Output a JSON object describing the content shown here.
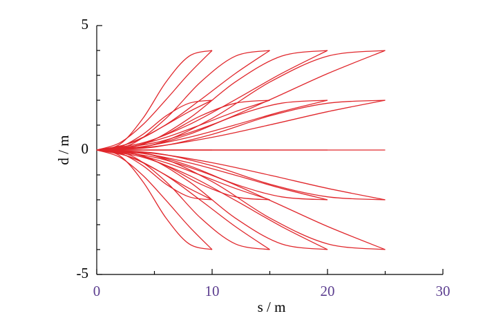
{
  "chart_data": {
    "type": "line",
    "x_label": "s / m",
    "y_label": "d / m",
    "color": "#e0262b",
    "xlim": [
      0,
      30
    ],
    "xticks": [
      0,
      10,
      20,
      30
    ],
    "ylim": [
      -5,
      5
    ],
    "yticks": [
      -5,
      0,
      5
    ],
    "series": [
      {
        "x": [
          0,
          2,
          4,
          6,
          8,
          10
        ],
        "values": [
          0,
          0.23,
          1.27,
          2.73,
          3.77,
          4
        ]
      },
      {
        "x": [
          0,
          2,
          4,
          6,
          8,
          10
        ],
        "values": [
          0,
          0.29,
          1.02,
          2.02,
          3.07,
          4
        ]
      },
      {
        "x": [
          0,
          2,
          4,
          6,
          8,
          10
        ],
        "values": [
          0,
          0.12,
          0.63,
          1.37,
          1.88,
          2
        ]
      },
      {
        "x": [
          0,
          2,
          4,
          6,
          8,
          10
        ],
        "values": [
          0,
          0.14,
          0.51,
          1.01,
          1.54,
          2
        ]
      },
      {
        "x": [
          0,
          2,
          4,
          6,
          8,
          10
        ],
        "values": [
          0,
          0,
          0,
          0,
          0,
          0
        ]
      },
      {
        "x": [
          0,
          2,
          4,
          6,
          8,
          10
        ],
        "values": [
          0,
          -0.12,
          -0.63,
          -1.37,
          -1.88,
          -2
        ]
      },
      {
        "x": [
          0,
          2,
          4,
          6,
          8,
          10
        ],
        "values": [
          0,
          -0.14,
          -0.51,
          -1.01,
          -1.54,
          -2
        ]
      },
      {
        "x": [
          0,
          2,
          4,
          6,
          8,
          10
        ],
        "values": [
          0,
          -0.23,
          -1.27,
          -2.73,
          -3.77,
          -4
        ]
      },
      {
        "x": [
          0,
          2,
          4,
          6,
          8,
          10
        ],
        "values": [
          0,
          -0.29,
          -1.02,
          -2.02,
          -3.07,
          -4
        ]
      },
      {
        "x": [
          0,
          3,
          6,
          9,
          12,
          15
        ],
        "values": [
          0,
          0.23,
          1.27,
          2.73,
          3.77,
          4
        ]
      },
      {
        "x": [
          0,
          3,
          6,
          9,
          12,
          15
        ],
        "values": [
          0,
          0.29,
          1.02,
          2.02,
          3.07,
          4
        ]
      },
      {
        "x": [
          0,
          3,
          6,
          9,
          12,
          15
        ],
        "values": [
          0,
          0.12,
          0.63,
          1.37,
          1.88,
          2
        ]
      },
      {
        "x": [
          0,
          3,
          6,
          9,
          12,
          15
        ],
        "values": [
          0,
          0.14,
          0.51,
          1.01,
          1.54,
          2
        ]
      },
      {
        "x": [
          0,
          3,
          6,
          9,
          12,
          15
        ],
        "values": [
          0,
          0,
          0,
          0,
          0,
          0
        ]
      },
      {
        "x": [
          0,
          3,
          6,
          9,
          12,
          15
        ],
        "values": [
          0,
          -0.12,
          -0.63,
          -1.37,
          -1.88,
          -2
        ]
      },
      {
        "x": [
          0,
          3,
          6,
          9,
          12,
          15
        ],
        "values": [
          0,
          -0.14,
          -0.51,
          -1.01,
          -1.54,
          -2
        ]
      },
      {
        "x": [
          0,
          3,
          6,
          9,
          12,
          15
        ],
        "values": [
          0,
          -0.23,
          -1.27,
          -2.73,
          -3.77,
          -4
        ]
      },
      {
        "x": [
          0,
          3,
          6,
          9,
          12,
          15
        ],
        "values": [
          0,
          -0.29,
          -1.02,
          -2.02,
          -3.07,
          -4
        ]
      },
      {
        "x": [
          0,
          4,
          8,
          12,
          16,
          20
        ],
        "values": [
          0,
          0.23,
          1.27,
          2.73,
          3.77,
          4
        ]
      },
      {
        "x": [
          0,
          4,
          8,
          12,
          16,
          20
        ],
        "values": [
          0,
          0.29,
          1.02,
          2.02,
          3.07,
          4
        ]
      },
      {
        "x": [
          0,
          4,
          8,
          12,
          16,
          20
        ],
        "values": [
          0,
          0.12,
          0.63,
          1.37,
          1.88,
          2
        ]
      },
      {
        "x": [
          0,
          4,
          8,
          12,
          16,
          20
        ],
        "values": [
          0,
          0.14,
          0.51,
          1.01,
          1.54,
          2
        ]
      },
      {
        "x": [
          0,
          4,
          8,
          12,
          16,
          20
        ],
        "values": [
          0,
          0,
          0,
          0,
          0,
          0
        ]
      },
      {
        "x": [
          0,
          4,
          8,
          12,
          16,
          20
        ],
        "values": [
          0,
          -0.12,
          -0.63,
          -1.37,
          -1.88,
          -2
        ]
      },
      {
        "x": [
          0,
          4,
          8,
          12,
          16,
          20
        ],
        "values": [
          0,
          -0.14,
          -0.51,
          -1.01,
          -1.54,
          -2
        ]
      },
      {
        "x": [
          0,
          4,
          8,
          12,
          16,
          20
        ],
        "values": [
          0,
          -0.23,
          -1.27,
          -2.73,
          -3.77,
          -4
        ]
      },
      {
        "x": [
          0,
          4,
          8,
          12,
          16,
          20
        ],
        "values": [
          0,
          -0.29,
          -1.02,
          -2.02,
          -3.07,
          -4
        ]
      },
      {
        "x": [
          0,
          5,
          10,
          15,
          20,
          25
        ],
        "values": [
          0,
          0.23,
          1.27,
          2.73,
          3.77,
          4
        ]
      },
      {
        "x": [
          0,
          5,
          10,
          15,
          20,
          25
        ],
        "values": [
          0,
          0.29,
          1.02,
          2.02,
          3.07,
          4
        ]
      },
      {
        "x": [
          0,
          5,
          10,
          15,
          20,
          25
        ],
        "values": [
          0,
          0.12,
          0.63,
          1.37,
          1.88,
          2
        ]
      },
      {
        "x": [
          0,
          5,
          10,
          15,
          20,
          25
        ],
        "values": [
          0,
          0.14,
          0.51,
          1.01,
          1.54,
          2
        ]
      },
      {
        "x": [
          0,
          5,
          10,
          15,
          20,
          25
        ],
        "values": [
          0,
          0,
          0,
          0,
          0,
          0
        ]
      },
      {
        "x": [
          0,
          5,
          10,
          15,
          20,
          25
        ],
        "values": [
          0,
          -0.12,
          -0.63,
          -1.37,
          -1.88,
          -2
        ]
      },
      {
        "x": [
          0,
          5,
          10,
          15,
          20,
          25
        ],
        "values": [
          0,
          -0.14,
          -0.51,
          -1.01,
          -1.54,
          -2
        ]
      },
      {
        "x": [
          0,
          5,
          10,
          15,
          20,
          25
        ],
        "values": [
          0,
          -0.23,
          -1.27,
          -2.73,
          -3.77,
          -4
        ]
      },
      {
        "x": [
          0,
          5,
          10,
          15,
          20,
          25
        ],
        "values": [
          0,
          -0.29,
          -1.02,
          -2.02,
          -3.07,
          -4
        ]
      }
    ]
  }
}
